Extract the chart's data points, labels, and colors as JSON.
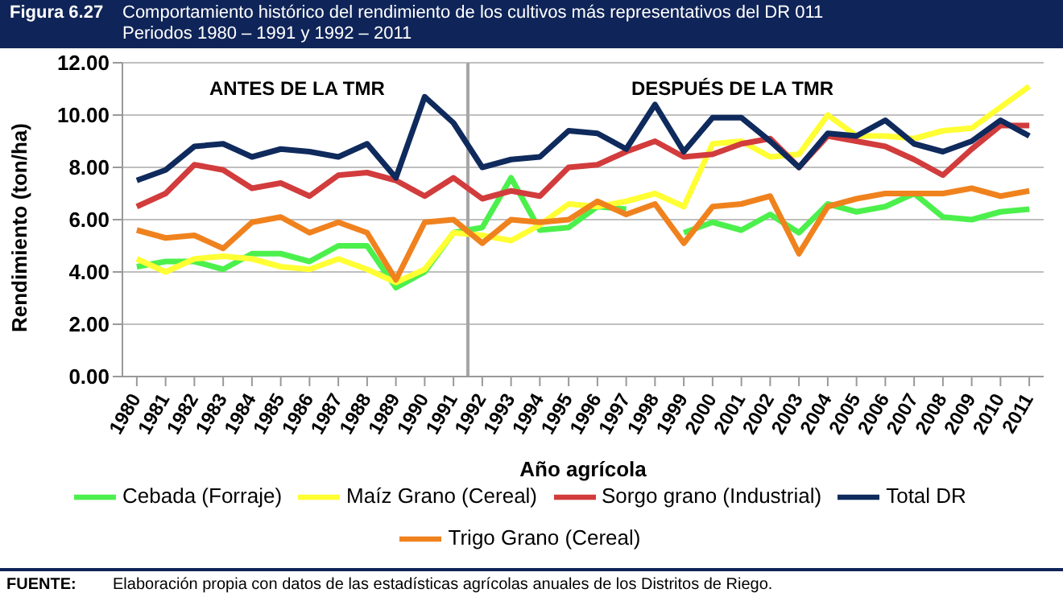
{
  "chart_data": {
    "type": "line",
    "title": "Figura 6.27\tComportamiento histórico del rendimiento de los cultivos más representativos del DR 011",
    "subtitle": "Periodos 1980 – 1991 y 1992 – 2011",
    "xlabel": "Año agrícola",
    "ylabel": "Rendimiento (ton/ha)",
    "x": [
      1980,
      1981,
      1982,
      1983,
      1984,
      1985,
      1986,
      1987,
      1988,
      1989,
      1990,
      1991,
      1992,
      1993,
      1994,
      1995,
      1996,
      1997,
      1998,
      1999,
      2000,
      2001,
      2002,
      2003,
      2004,
      2005,
      2006,
      2007,
      2008,
      2009,
      2010,
      2011
    ],
    "xlim": [
      1979.5,
      2011.5
    ],
    "xticks": [
      1980,
      1981,
      1982,
      1983,
      1984,
      1985,
      1986,
      1987,
      1988,
      1989,
      1990,
      1991,
      1992,
      1993,
      1994,
      1995,
      1996,
      1997,
      1998,
      1999,
      2000,
      2001,
      2002,
      2003,
      2004,
      2005,
      2006,
      2007,
      2008,
      2009,
      2010,
      2011
    ],
    "ylim": [
      0,
      12
    ],
    "yticks": [
      {
        "value": 0,
        "label": "0.00"
      },
      {
        "value": 2,
        "label": "2.00"
      },
      {
        "value": 4,
        "label": "4.00"
      },
      {
        "value": 6,
        "label": "6.00"
      },
      {
        "value": 8,
        "label": "8.00"
      },
      {
        "value": 10,
        "label": "10.00"
      },
      {
        "value": 12,
        "label": "12.00"
      }
    ],
    "grid": "y",
    "legend": "bottom",
    "marker": "none",
    "line_style": "solid",
    "series": [
      {
        "name": "Cebada (Forraje)",
        "color": "#4cf04c",
        "values": [
          4.2,
          4.4,
          4.4,
          4.1,
          4.7,
          4.7,
          4.4,
          5.0,
          5.0,
          3.4,
          4.0,
          5.5,
          5.7,
          7.6,
          5.6,
          5.7,
          6.5,
          6.4,
          null,
          5.5,
          5.9,
          5.6,
          6.2,
          5.5,
          6.6,
          6.3,
          6.5,
          7.0,
          6.1,
          6.0,
          6.3,
          6.4
        ]
      },
      {
        "name": "Maíz Grano (Cereal)",
        "color": "#ffff33",
        "values": [
          4.5,
          4.0,
          4.5,
          4.6,
          4.5,
          4.2,
          4.1,
          4.5,
          4.1,
          3.6,
          4.1,
          5.5,
          5.4,
          5.2,
          5.8,
          6.6,
          6.5,
          6.7,
          7.0,
          6.5,
          8.9,
          9.0,
          8.4,
          8.5,
          10.0,
          9.2,
          9.2,
          9.1,
          9.4,
          9.5,
          10.3,
          11.1
        ]
      },
      {
        "name": "Trigo Grano (Cereal)",
        "color": "#f0821e",
        "values": [
          5.6,
          5.3,
          5.4,
          4.9,
          5.9,
          6.1,
          5.5,
          5.9,
          5.5,
          3.7,
          5.9,
          6.0,
          5.1,
          6.0,
          5.9,
          6.0,
          6.7,
          6.2,
          6.6,
          5.1,
          6.5,
          6.6,
          6.9,
          4.7,
          6.5,
          6.8,
          7.0,
          7.0,
          7.0,
          7.2,
          6.9,
          7.1
        ]
      },
      {
        "name": "Sorgo grano (Industrial)",
        "color": "#d23c3c",
        "values": [
          6.5,
          7.0,
          8.1,
          7.9,
          7.2,
          7.4,
          6.9,
          7.7,
          7.8,
          7.5,
          6.9,
          7.6,
          6.8,
          7.1,
          6.9,
          8.0,
          8.1,
          8.6,
          9.0,
          8.4,
          8.5,
          8.9,
          9.1,
          8.0,
          9.2,
          9.0,
          8.8,
          8.3,
          7.7,
          8.7,
          9.6,
          9.6
        ]
      },
      {
        "name": "Total DR",
        "color": "#0f2a5c",
        "values": [
          7.5,
          7.9,
          8.8,
          8.9,
          8.4,
          8.7,
          8.6,
          8.4,
          8.9,
          7.6,
          10.7,
          9.7,
          8.0,
          8.3,
          8.4,
          9.4,
          9.3,
          8.7,
          10.4,
          8.6,
          9.9,
          9.9,
          9.0,
          8.0,
          9.3,
          9.2,
          9.8,
          8.9,
          8.6,
          9.0,
          9.8,
          9.2
        ]
      }
    ],
    "ref_lines": [
      {
        "axis": "x",
        "value": 1991.5,
        "color": "#a6a6a6"
      }
    ],
    "annotations": [
      "ANTES DE LA TMR",
      "DESPUÉS DE LA TMR",
      "FUENTE:\tElaboración propia con datos de las estadísticas agrícolas anuales de los Distritos de Riego."
    ]
  }
}
